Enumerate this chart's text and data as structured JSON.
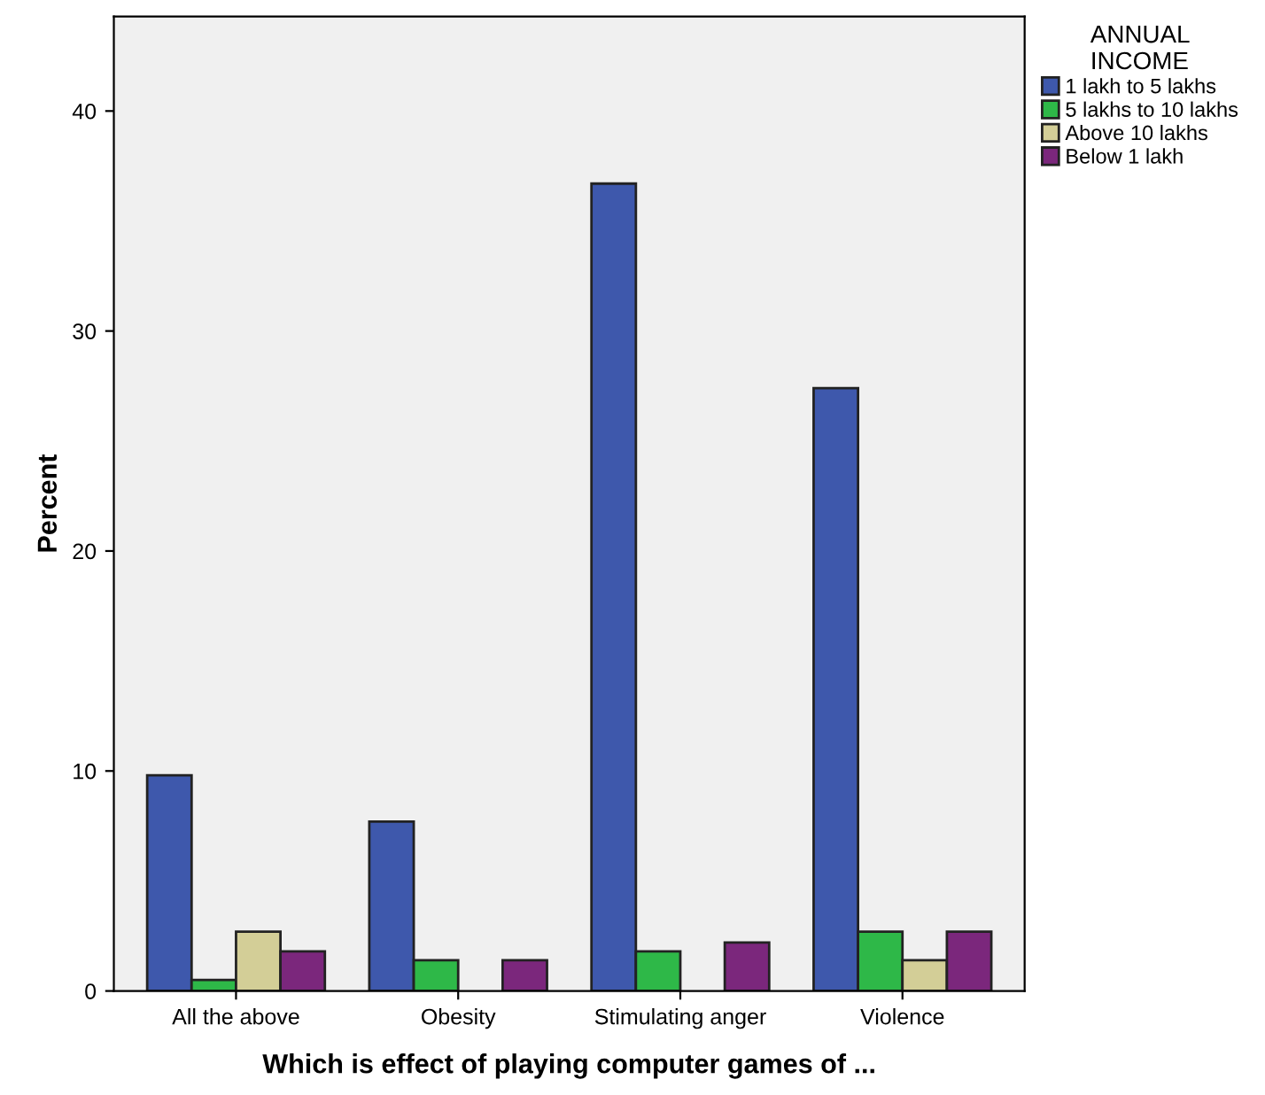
{
  "chart_data": {
    "type": "bar",
    "xlabel": "Which is effect of playing computer games of ...",
    "ylabel": "Percent",
    "legend_title": "ANNUAL\nINCOME",
    "categories": [
      "All the above",
      "Obesity",
      "Stimulating anger",
      "Violence"
    ],
    "series": [
      {
        "name": "1 lakh to 5 lakhs",
        "color": "#3e58ac",
        "values": [
          9.8,
          7.7,
          36.7,
          27.4
        ]
      },
      {
        "name": "5 lakhs to 10 lakhs",
        "color": "#2eb848",
        "values": [
          0.5,
          1.4,
          1.8,
          2.7
        ]
      },
      {
        "name": "Above 10 lakhs",
        "color": "#d3ce97",
        "values": [
          2.7,
          null,
          null,
          1.4
        ]
      },
      {
        "name": "Below 1 lakh",
        "color": "#7b277c",
        "values": [
          1.8,
          1.4,
          2.2,
          2.7
        ]
      }
    ],
    "ylim": [
      0,
      44.3
    ],
    "yticks": [
      0,
      10,
      20,
      30,
      40
    ],
    "grid": false,
    "legend": "right"
  }
}
